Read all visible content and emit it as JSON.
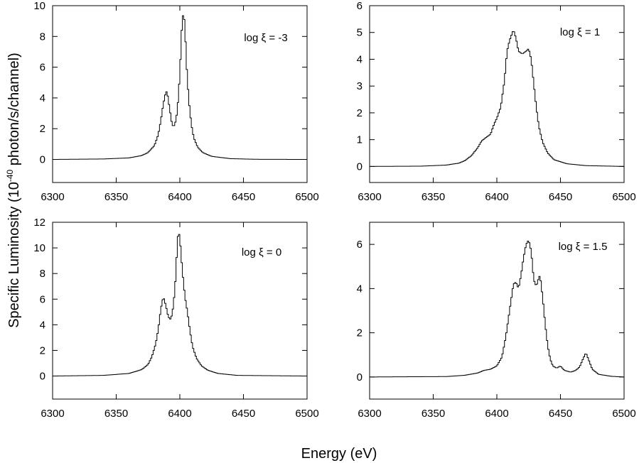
{
  "figure": {
    "ylabel_main": "Specific Luminosity (10",
    "ylabel_sup": "-40",
    "ylabel_tail": " photon/s/channel)",
    "xlabel": "Energy (eV)"
  },
  "chart_data": [
    {
      "type": "line",
      "annotation": "log ξ = -3",
      "xlim": [
        6300,
        6500
      ],
      "ylim": [
        -1.5,
        10
      ],
      "xticks": [
        6300,
        6350,
        6400,
        6450,
        6500
      ],
      "yticks": [
        0,
        2,
        4,
        6,
        8,
        10
      ],
      "series": [
        {
          "points": [
            [
              6300,
              0
            ],
            [
              6340,
              0.03
            ],
            [
              6360,
              0.1
            ],
            [
              6370,
              0.25
            ],
            [
              6375,
              0.45
            ],
            [
              6380,
              0.9
            ],
            [
              6383,
              1.6
            ],
            [
              6385,
              2.5
            ],
            [
              6387,
              3.6
            ],
            [
              6389,
              4.4
            ],
            [
              6390,
              4.4
            ],
            [
              6392,
              3.3
            ],
            [
              6394,
              2.2
            ],
            [
              6396,
              2.2
            ],
            [
              6398,
              3.1
            ],
            [
              6400,
              5.5
            ],
            [
              6401,
              7.5
            ],
            [
              6402,
              9.3
            ],
            [
              6403,
              9.4
            ],
            [
              6404,
              8.8
            ],
            [
              6405,
              6.5
            ],
            [
              6407,
              3.9
            ],
            [
              6409,
              2.3
            ],
            [
              6411,
              1.4
            ],
            [
              6414,
              0.8
            ],
            [
              6418,
              0.45
            ],
            [
              6425,
              0.2
            ],
            [
              6440,
              0.05
            ],
            [
              6460,
              0.01
            ],
            [
              6500,
              0
            ]
          ]
        }
      ]
    },
    {
      "type": "line",
      "annotation": "log ξ = 1",
      "xlim": [
        6300,
        6500
      ],
      "ylim": [
        -0.6,
        6
      ],
      "xticks": [
        6300,
        6350,
        6400,
        6450,
        6500
      ],
      "yticks": [
        0,
        1,
        2,
        3,
        4,
        5,
        6
      ],
      "series": [
        {
          "points": [
            [
              6300,
              0
            ],
            [
              6340,
              0.01
            ],
            [
              6360,
              0.05
            ],
            [
              6370,
              0.12
            ],
            [
              6375,
              0.22
            ],
            [
              6380,
              0.4
            ],
            [
              6385,
              0.7
            ],
            [
              6388,
              0.95
            ],
            [
              6392,
              1.1
            ],
            [
              6395,
              1.2
            ],
            [
              6398,
              1.6
            ],
            [
              6400,
              1.8
            ],
            [
              6403,
              2.2
            ],
            [
              6406,
              3.2
            ],
            [
              6408,
              4.3
            ],
            [
              6410,
              4.7
            ],
            [
              6413,
              5.1
            ],
            [
              6415,
              4.8
            ],
            [
              6417,
              4.3
            ],
            [
              6420,
              4.2
            ],
            [
              6423,
              4.3
            ],
            [
              6425,
              4.4
            ],
            [
              6427,
              4.0
            ],
            [
              6429,
              3.1
            ],
            [
              6431,
              2.2
            ],
            [
              6433,
              1.5
            ],
            [
              6436,
              0.9
            ],
            [
              6440,
              0.5
            ],
            [
              6445,
              0.25
            ],
            [
              6455,
              0.1
            ],
            [
              6470,
              0.03
            ],
            [
              6500,
              0
            ]
          ]
        }
      ]
    },
    {
      "type": "line",
      "annotation": "log ξ = 0",
      "xlim": [
        6300,
        6500
      ],
      "ylim": [
        -1.8,
        12
      ],
      "xticks": [
        6300,
        6350,
        6400,
        6450,
        6500
      ],
      "yticks": [
        0,
        2,
        4,
        6,
        8,
        10,
        12
      ],
      "series": [
        {
          "points": [
            [
              6300,
              0
            ],
            [
              6340,
              0.05
            ],
            [
              6360,
              0.2
            ],
            [
              6370,
              0.5
            ],
            [
              6375,
              0.9
            ],
            [
              6378,
              1.5
            ],
            [
              6381,
              2.5
            ],
            [
              6383,
              3.6
            ],
            [
              6385,
              5.2
            ],
            [
              6387,
              6.2
            ],
            [
              6389,
              5.5
            ],
            [
              6391,
              4.6
            ],
            [
              6393,
              4.4
            ],
            [
              6395,
              5.5
            ],
            [
              6397,
              8.0
            ],
            [
              6398,
              10.5
            ],
            [
              6399,
              11.3
            ],
            [
              6400,
              10.8
            ],
            [
              6402,
              8.2
            ],
            [
              6404,
              6.2
            ],
            [
              6406,
              5.0
            ],
            [
              6408,
              3.5
            ],
            [
              6410,
              2.3
            ],
            [
              6413,
              1.4
            ],
            [
              6417,
              0.8
            ],
            [
              6422,
              0.45
            ],
            [
              6430,
              0.2
            ],
            [
              6445,
              0.05
            ],
            [
              6500,
              0
            ]
          ]
        }
      ]
    },
    {
      "type": "line",
      "annotation": "log ξ = 1.5",
      "xlim": [
        6300,
        6500
      ],
      "ylim": [
        -1,
        7
      ],
      "xticks": [
        6300,
        6350,
        6400,
        6450,
        6500
      ],
      "yticks": [
        0,
        2,
        4,
        6
      ],
      "series": [
        {
          "points": [
            [
              6300,
              0
            ],
            [
              6360,
              0.02
            ],
            [
              6375,
              0.08
            ],
            [
              6385,
              0.18
            ],
            [
              6390,
              0.3
            ],
            [
              6395,
              0.35
            ],
            [
              6400,
              0.5
            ],
            [
              6404,
              0.9
            ],
            [
              6407,
              1.8
            ],
            [
              6410,
              3.0
            ],
            [
              6413,
              4.2
            ],
            [
              6415,
              4.3
            ],
            [
              6417,
              4.0
            ],
            [
              6419,
              4.6
            ],
            [
              6421,
              5.4
            ],
            [
              6423,
              6.0
            ],
            [
              6425,
              6.2
            ],
            [
              6427,
              5.7
            ],
            [
              6429,
              4.4
            ],
            [
              6431,
              4.1
            ],
            [
              6433,
              4.5
            ],
            [
              6434,
              4.6
            ],
            [
              6436,
              3.6
            ],
            [
              6438,
              2.4
            ],
            [
              6440,
              1.4
            ],
            [
              6442,
              0.8
            ],
            [
              6444,
              0.5
            ],
            [
              6447,
              0.4
            ],
            [
              6450,
              0.5
            ],
            [
              6453,
              0.3
            ],
            [
              6458,
              0.22
            ],
            [
              6462,
              0.3
            ],
            [
              6465,
              0.45
            ],
            [
              6468,
              0.85
            ],
            [
              6470,
              1.1
            ],
            [
              6472,
              0.8
            ],
            [
              6475,
              0.35
            ],
            [
              6480,
              0.12
            ],
            [
              6490,
              0.03
            ],
            [
              6500,
              0
            ]
          ]
        }
      ]
    }
  ]
}
